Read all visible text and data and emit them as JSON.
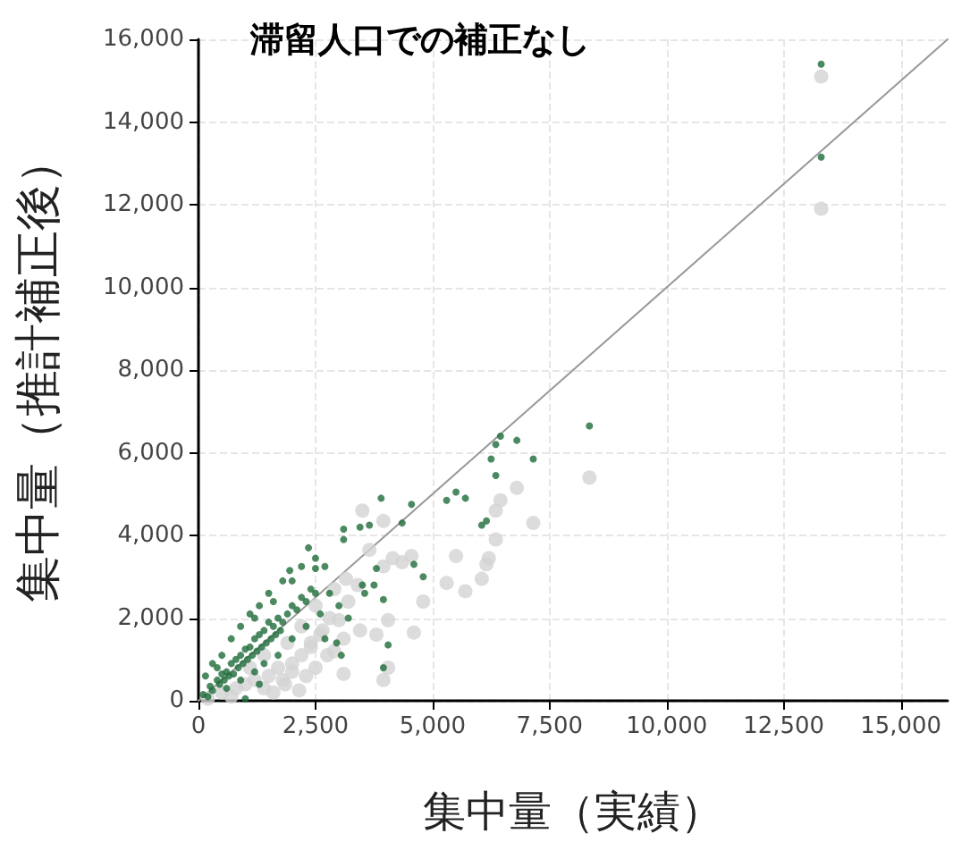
{
  "chart_data": {
    "type": "scatter",
    "title": "滞留人口での補正なし",
    "xlabel": "集中量（実績）",
    "ylabel": "集中量（推計補正後）",
    "xlim": [
      0,
      16000
    ],
    "xticks": [
      0,
      {
        "value": 2500,
        "label": "2,500"
      },
      {
        "value": 5000,
        "label": "5,000"
      },
      {
        "value": 7500,
        "label": "7,500"
      },
      {
        "value": 10000,
        "label": "10,000"
      },
      {
        "value": 12500,
        "label": "12,500"
      },
      {
        "value": 15000,
        "label": "15,000"
      }
    ],
    "ylim": [
      0,
      16000
    ],
    "yticks": [
      0,
      {
        "value": 2000,
        "label": "2,000"
      },
      {
        "value": 4000,
        "label": "4,000"
      },
      {
        "value": 6000,
        "label": "6,000"
      },
      {
        "value": 8000,
        "label": "8,000"
      },
      {
        "value": 10000,
        "label": "10,000"
      },
      {
        "value": 12000,
        "label": "12,000"
      },
      {
        "value": 14000,
        "label": "14,000"
      },
      {
        "value": 16000,
        "label": "16,000"
      }
    ],
    "grid": true,
    "marker": "circle",
    "series": [
      {
        "color": "#d3d3d3",
        "x": [
          13300,
          13300,
          8350,
          6800,
          6450,
          6350,
          7150,
          6350,
          6200,
          6150,
          5500,
          6050,
          5300,
          5700,
          4800,
          4600,
          4550,
          4350,
          4150,
          3950,
          3500,
          3950,
          3650,
          4050,
          3950,
          4050,
          3800,
          3450,
          3200,
          3000,
          3100,
          2750,
          2500,
          2150,
          1850,
          2650,
          2900,
          2400,
          3400,
          3150,
          200,
          500,
          800,
          1000,
          1200,
          1400,
          1500,
          1700,
          1800,
          2000,
          2200,
          2400,
          2000,
          1600,
          2300,
          2600,
          2800,
          2200,
          1900,
          2500,
          700,
          1100,
          1400,
          2900,
          3100
        ],
        "values": [
          15100,
          11900,
          5400,
          5150,
          4850,
          4600,
          4300,
          3900,
          3450,
          3300,
          3500,
          2950,
          2850,
          2650,
          2400,
          1650,
          3500,
          3350,
          3450,
          3250,
          4600,
          4350,
          3650,
          1950,
          500,
          800,
          1600,
          1700,
          2400,
          1950,
          650,
          1100,
          800,
          250,
          400,
          1700,
          2700,
          1400,
          2800,
          2950,
          50,
          200,
          300,
          400,
          500,
          300,
          600,
          800,
          500,
          900,
          1100,
          1300,
          700,
          200,
          600,
          1600,
          2000,
          1800,
          1400,
          2300,
          100,
          800,
          1100,
          1200,
          1500
        ]
      },
      {
        "color": "#1e6b3a",
        "x": [
          13300,
          13300,
          8350,
          6450,
          6800,
          6350,
          7150,
          6250,
          6350,
          5300,
          5500,
          5700,
          6050,
          6150,
          4550,
          3900,
          4350,
          4600,
          4800,
          3100,
          3450,
          3650,
          3100,
          2350,
          2700,
          3950,
          4050,
          3950,
          3750,
          2950,
          3050,
          1950,
          2200,
          2500,
          3550,
          3800,
          100,
          200,
          250,
          300,
          400,
          450,
          500,
          550,
          600,
          650,
          700,
          750,
          800,
          850,
          900,
          950,
          1000,
          1050,
          1100,
          1150,
          1200,
          1250,
          1300,
          1350,
          1400,
          1450,
          1500,
          1550,
          1600,
          1650,
          1700,
          1750,
          1800,
          1900,
          2000,
          2100,
          2200,
          2300,
          2400,
          2500,
          300,
          500,
          700,
          900,
          1100,
          1300,
          1500,
          1800,
          600,
          900,
          1200,
          1400,
          1700,
          1000,
          1300,
          2000,
          2300,
          2600,
          150,
          400,
          1200,
          1600,
          2000,
          2500,
          2800,
          3000,
          3200,
          2700,
          3500
        ],
        "values": [
          15400,
          13150,
          6650,
          6400,
          6300,
          6200,
          5850,
          5850,
          5450,
          4850,
          5050,
          4900,
          4250,
          4350,
          4750,
          4900,
          4300,
          3300,
          3000,
          4150,
          4200,
          4250,
          3900,
          3700,
          3250,
          800,
          1350,
          2450,
          2800,
          1400,
          1100,
          3150,
          3250,
          3450,
          2600,
          3200,
          150,
          100,
          350,
          250,
          500,
          400,
          650,
          500,
          700,
          600,
          900,
          650,
          1000,
          800,
          1100,
          900,
          1250,
          1000,
          1300,
          1100,
          1500,
          1200,
          1600,
          1300,
          1700,
          1400,
          1900,
          1500,
          1800,
          1600,
          2000,
          1700,
          1900,
          2100,
          2300,
          2200,
          2500,
          2400,
          2700,
          2600,
          900,
          1100,
          1500,
          1800,
          2100,
          2300,
          2600,
          2900,
          300,
          500,
          700,
          900,
          1100,
          50,
          400,
          1500,
          1800,
          2100,
          600,
          800,
          2000,
          2400,
          2900,
          3200,
          2600,
          2300,
          2000,
          1500,
          2800
        ]
      },
      {
        "type": "line",
        "color": "#999999",
        "marker": "none",
        "line_style": "solid",
        "x": [
          0,
          16000
        ],
        "values": [
          0,
          16000
        ]
      }
    ]
  }
}
